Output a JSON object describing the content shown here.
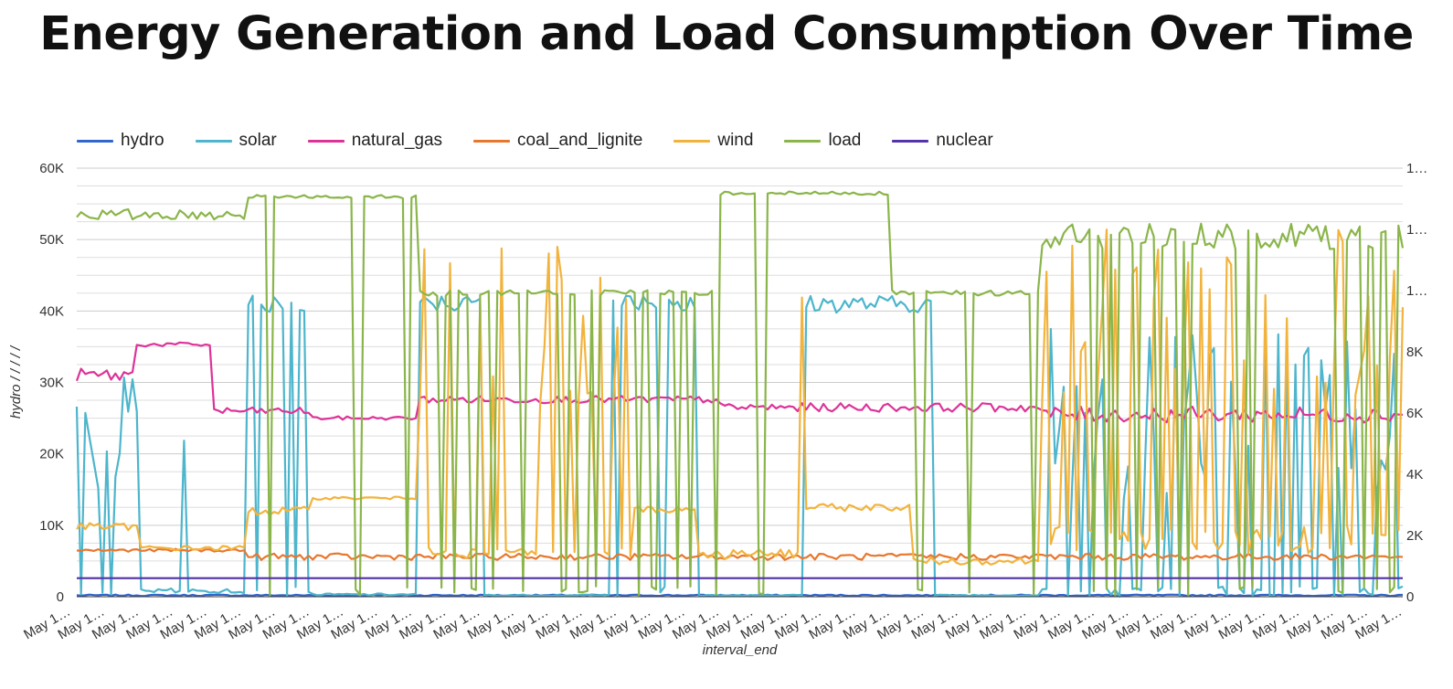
{
  "chart_data": {
    "type": "line",
    "title": "Energy Generation and Load Consumption Over Time",
    "xlabel": "interval_end",
    "ylabel": "hydro / / / / /",
    "ylim": [
      0,
      60000
    ],
    "y_ticks": [
      "0",
      "10K",
      "20K",
      "30K",
      "40K",
      "50K",
      "60K"
    ],
    "y2_ticks": [
      "0",
      "2K",
      "4K",
      "6K",
      "8K",
      "1…",
      "1…",
      "1…"
    ],
    "y2_max": 14000,
    "x_tick_label": "May 1…",
    "x_tick_count": 40,
    "grid": true,
    "legend_position": "top-left",
    "n_points": 310,
    "series": [
      {
        "name": "hydro",
        "color": "#3366cc",
        "segments": [
          [
            0,
            310,
            200,
            200,
            0
          ]
        ]
      },
      {
        "name": "solar",
        "color": "#4db5cc",
        "segments": [
          [
            0,
            15,
            23000,
            16000,
            20
          ],
          [
            15,
            40,
            800,
            700,
            5
          ],
          [
            40,
            55,
            41000,
            2500,
            10
          ],
          [
            55,
            80,
            300,
            300,
            0
          ],
          [
            80,
            95,
            41000,
            2500,
            0
          ],
          [
            95,
            125,
            200,
            200,
            0
          ],
          [
            125,
            145,
            41000,
            2500,
            5
          ],
          [
            145,
            170,
            200,
            200,
            0
          ],
          [
            170,
            200,
            41000,
            2500,
            0
          ],
          [
            200,
            225,
            200,
            200,
            0
          ],
          [
            225,
            310,
            26000,
            25000,
            45
          ]
        ]
      },
      {
        "name": "natural_gas",
        "color": "#dd3399",
        "segments": [
          [
            0,
            14,
            31000,
            2000,
            0
          ],
          [
            14,
            32,
            35300,
            600,
            0
          ],
          [
            32,
            55,
            26000,
            1000,
            0
          ],
          [
            55,
            80,
            25000,
            500,
            0
          ],
          [
            80,
            150,
            27600,
            1000,
            0
          ],
          [
            150,
            225,
            26500,
            1200,
            0
          ],
          [
            225,
            310,
            25500,
            2200,
            0
          ]
        ]
      },
      {
        "name": "coal_and_lignite",
        "color": "#e8772e",
        "segments": [
          [
            0,
            40,
            6500,
            400,
            0
          ],
          [
            40,
            310,
            5600,
            900,
            0
          ]
        ]
      },
      {
        "name": "wind",
        "color": "#f2b33d",
        "segments": [
          [
            0,
            15,
            9800,
            1000,
            0
          ],
          [
            15,
            40,
            6800,
            700,
            0
          ],
          [
            40,
            55,
            12000,
            1200,
            0
          ],
          [
            55,
            80,
            13800,
            400,
            0
          ],
          [
            80,
            130,
            6000,
            1800,
            30
          ],
          [
            130,
            145,
            12200,
            1000,
            0
          ],
          [
            145,
            170,
            6000,
            1500,
            20
          ],
          [
            170,
            195,
            12500,
            1000,
            0
          ],
          [
            195,
            225,
            5000,
            1000,
            0
          ],
          [
            225,
            310,
            8000,
            4000,
            50
          ]
        ]
      },
      {
        "name": "load",
        "color": "#8ab54a",
        "segments": [
          [
            0,
            40,
            53500,
            1500,
            0
          ],
          [
            40,
            80,
            56000,
            500,
            10
          ],
          [
            80,
            150,
            42500,
            800,
            20
          ],
          [
            150,
            190,
            56500,
            500,
            10
          ],
          [
            190,
            225,
            42500,
            800,
            10
          ],
          [
            225,
            310,
            50500,
            4000,
            20
          ]
        ]
      },
      {
        "name": "nuclear",
        "color": "#5533aa",
        "segments": [
          [
            0,
            310,
            2600,
            0,
            0
          ]
        ]
      }
    ]
  }
}
